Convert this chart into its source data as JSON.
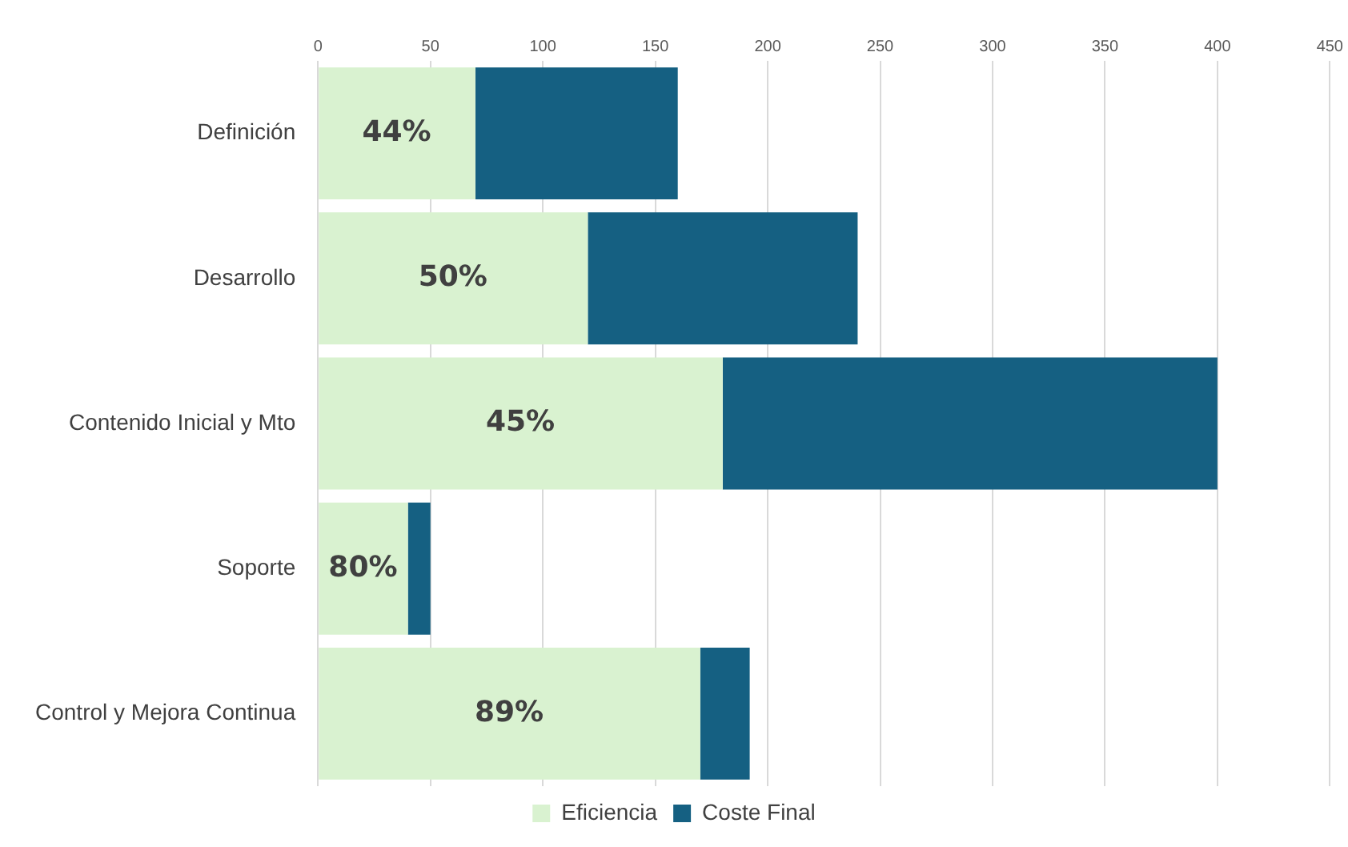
{
  "chart_data": {
    "type": "bar",
    "orientation": "horizontal",
    "stacked": true,
    "categories": [
      "Definición",
      "Desarrollo",
      "Contenido Inicial y Mto",
      "Soporte",
      "Control y Mejora Continua"
    ],
    "series": [
      {
        "name": "Eficiencia",
        "color": "#d9f2d0",
        "values": [
          70,
          120,
          180,
          40,
          170
        ]
      },
      {
        "name": "Coste Final",
        "color": "#156082",
        "values": [
          90,
          120,
          220,
          10,
          22
        ]
      }
    ],
    "annotations": [
      {
        "text": "44%",
        "x": 35,
        "y": "Definición"
      },
      {
        "text": "50%",
        "x": 60,
        "y": "Desarrollo"
      },
      {
        "text": "45%",
        "x": 90,
        "y": "Contenido Inicial y Mto"
      },
      {
        "text": "80%",
        "x": 20,
        "y": "Soporte"
      },
      {
        "text": "89%",
        "x": 85,
        "y": "Control y Mejora Continua"
      }
    ],
    "xlim": [
      0,
      450
    ],
    "xticks": [
      0,
      50,
      100,
      150,
      200,
      250,
      300,
      350,
      400,
      450
    ],
    "grid": "x",
    "legend": "bottom"
  }
}
